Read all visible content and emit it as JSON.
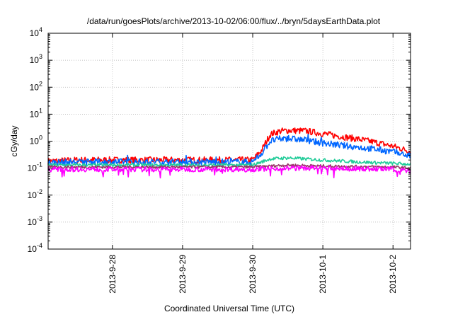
{
  "chart_data": {
    "type": "line",
    "title": "/data/run/goesPlots/archive/2013-10-02/06:00/flux/../bryn/5daysEarthData.plot",
    "xlabel": "Coordinated Universal Time (UTC)",
    "ylabel": "cGy/day",
    "yscale": "log",
    "ylim": [
      0.0001,
      10000
    ],
    "xlim": [
      "2013-09-27T02:00",
      "2013-10-02T06:00"
    ],
    "y_ticks": [
      {
        "base": "10",
        "exp": "-4",
        "value": 0.0001
      },
      {
        "base": "10",
        "exp": "-3",
        "value": 0.001
      },
      {
        "base": "10",
        "exp": "-2",
        "value": 0.01
      },
      {
        "base": "10",
        "exp": "-1",
        "value": 0.1
      },
      {
        "base": "10",
        "exp": "0",
        "value": 1
      },
      {
        "base": "10",
        "exp": "1",
        "value": 10
      },
      {
        "base": "10",
        "exp": "2",
        "value": 100
      },
      {
        "base": "10",
        "exp": "3",
        "value": 1000
      },
      {
        "base": "10",
        "exp": "4",
        "value": 10000
      }
    ],
    "x_ticks": [
      {
        "label": "2013-9-28",
        "value": "2013-09-28T00:00"
      },
      {
        "label": "2013-9-29",
        "value": "2013-09-29T00:00"
      },
      {
        "label": "2013-9-30",
        "value": "2013-09-30T00:00"
      },
      {
        "label": "2013-10-1",
        "value": "2013-10-01T00:00"
      },
      {
        "label": "2013-10-2",
        "value": "2013-10-02T00:00"
      }
    ],
    "grid": true,
    "series": [
      {
        "color": "#ff0000",
        "x": [
          "2013-09-27T02:00",
          "2013-09-27T12:00",
          "2013-09-28T00:00",
          "2013-09-28T12:00",
          "2013-09-29T00:00",
          "2013-09-29T12:00",
          "2013-09-30T00:00",
          "2013-09-30T03:00",
          "2013-09-30T06:00",
          "2013-09-30T09:00",
          "2013-09-30T12:00",
          "2013-09-30T18:00",
          "2013-10-01T00:00",
          "2013-10-01T06:00",
          "2013-10-01T12:00",
          "2013-10-01T18:00",
          "2013-10-02T00:00",
          "2013-10-02T06:00"
        ],
        "values": [
          0.18,
          0.2,
          0.2,
          0.2,
          0.2,
          0.2,
          0.2,
          0.45,
          1.8,
          2.3,
          2.5,
          2.4,
          1.9,
          1.5,
          1.2,
          0.9,
          0.65,
          0.42
        ]
      },
      {
        "color": "#0066ff",
        "x": [
          "2013-09-27T02:00",
          "2013-09-27T12:00",
          "2013-09-28T00:00",
          "2013-09-28T12:00",
          "2013-09-29T00:00",
          "2013-09-29T12:00",
          "2013-09-30T00:00",
          "2013-09-30T03:00",
          "2013-09-30T06:00",
          "2013-09-30T09:00",
          "2013-09-30T12:00",
          "2013-09-30T18:00",
          "2013-10-01T00:00",
          "2013-10-01T06:00",
          "2013-10-01T12:00",
          "2013-10-01T18:00",
          "2013-10-02T00:00",
          "2013-10-02T06:00"
        ],
        "values": [
          0.16,
          0.17,
          0.17,
          0.17,
          0.17,
          0.17,
          0.17,
          0.35,
          1.0,
          1.2,
          1.25,
          1.1,
          0.85,
          0.7,
          0.6,
          0.5,
          0.4,
          0.28
        ]
      },
      {
        "color": "#22cc99",
        "x": [
          "2013-09-27T02:00",
          "2013-09-28T00:00",
          "2013-09-29T00:00",
          "2013-09-30T00:00",
          "2013-09-30T06:00",
          "2013-09-30T12:00",
          "2013-10-01T00:00",
          "2013-10-01T12:00",
          "2013-10-02T00:00",
          "2013-10-02T06:00"
        ],
        "values": [
          0.13,
          0.13,
          0.13,
          0.13,
          0.22,
          0.24,
          0.2,
          0.17,
          0.15,
          0.14
        ]
      },
      {
        "color": "#993366",
        "x": [
          "2013-09-27T02:00",
          "2013-09-28T00:00",
          "2013-09-29T00:00",
          "2013-09-30T00:00",
          "2013-09-30T12:00",
          "2013-10-01T00:00",
          "2013-10-02T00:00",
          "2013-10-02T06:00"
        ],
        "values": [
          0.11,
          0.11,
          0.11,
          0.11,
          0.13,
          0.12,
          0.11,
          0.1
        ]
      },
      {
        "color": "#ff00ff",
        "x": [
          "2013-09-27T02:00",
          "2013-09-28T00:00",
          "2013-09-29T00:00",
          "2013-09-30T00:00",
          "2013-09-30T12:00",
          "2013-10-01T00:00",
          "2013-10-02T00:00",
          "2013-10-02T06:00"
        ],
        "values": [
          0.09,
          0.09,
          0.09,
          0.09,
          0.1,
          0.1,
          0.09,
          0.08
        ]
      }
    ]
  }
}
